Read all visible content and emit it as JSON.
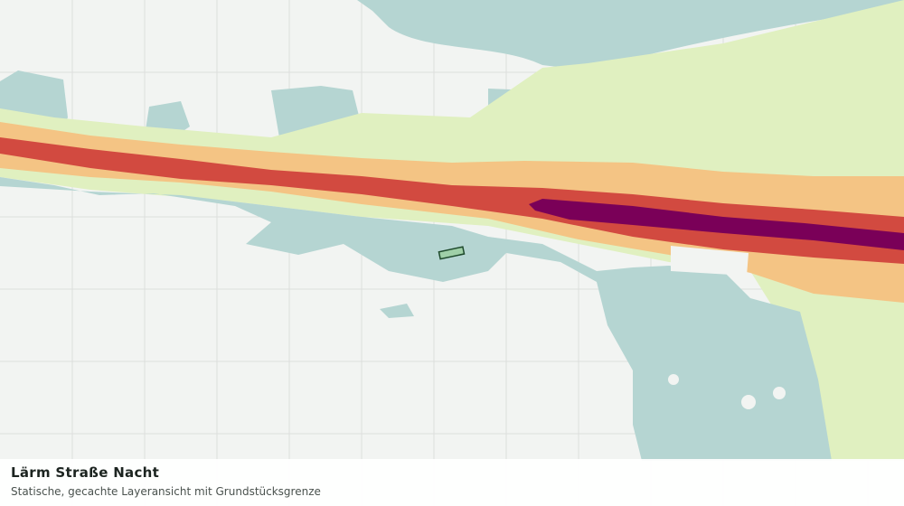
{
  "map": {
    "title": "Lärm Straße Nacht",
    "subtitle": "Statische, gecachte Layeransicht mit Grundstücksgrenze"
  }
}
